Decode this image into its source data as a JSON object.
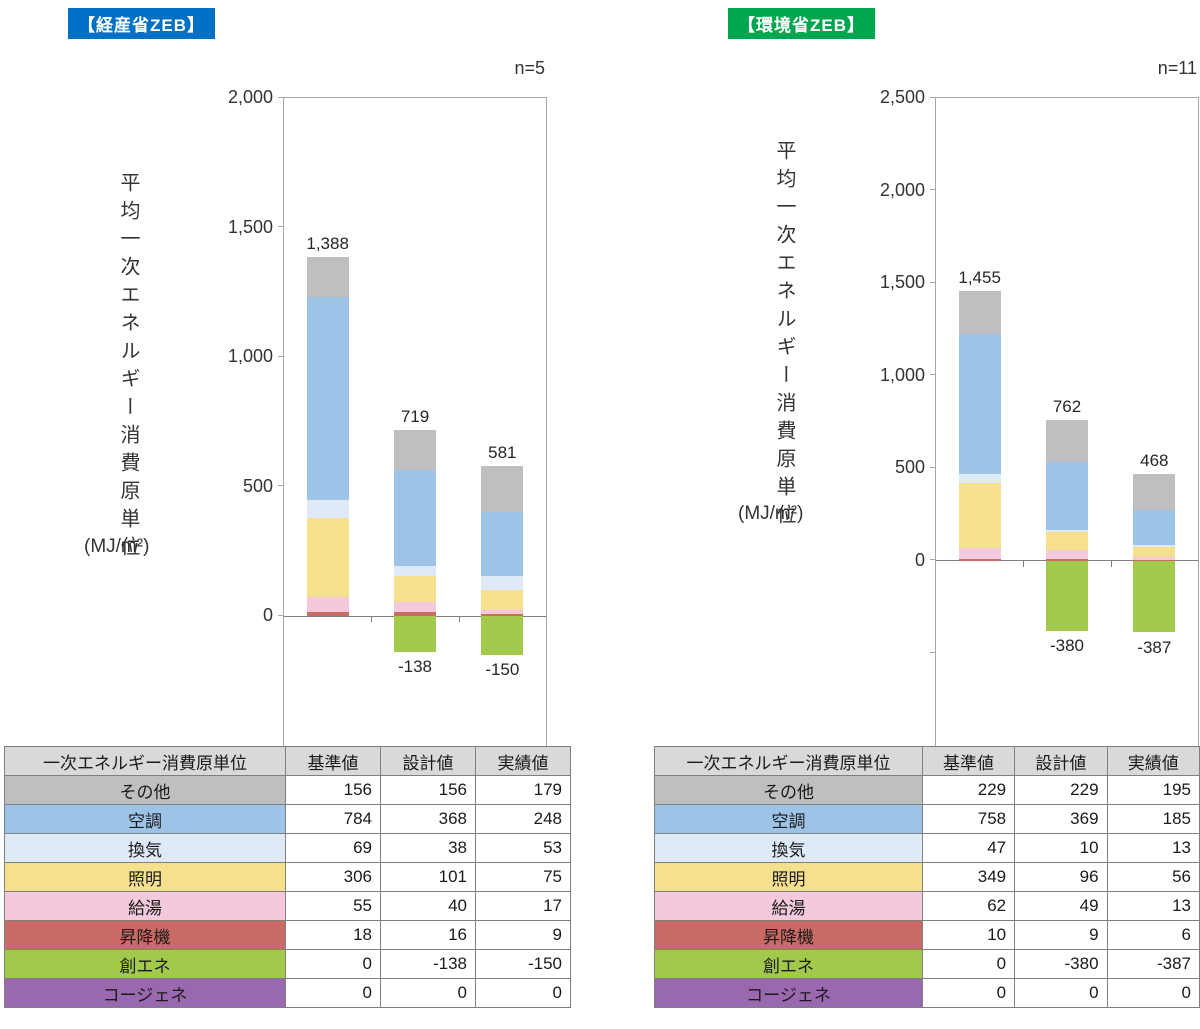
{
  "panels": [
    {
      "badge": "【経産省ZEB】",
      "badge_color": "#0070C6",
      "table": {
        "header": [
          "一次エネルギー消費原単位",
          "基準値",
          "設計値",
          "実績値"
        ],
        "rows": [
          {
            "label": "その他",
            "color": "#BFBFBF",
            "values": [
              "156",
              "156",
              "179"
            ]
          },
          {
            "label": "空調",
            "color": "#9DC3E6",
            "values": [
              "784",
              "368",
              "248"
            ]
          },
          {
            "label": "換気",
            "color": "#DEEBF7",
            "values": [
              "69",
              "38",
              "53"
            ]
          },
          {
            "label": "照明",
            "color": "#F5E08E",
            "values": [
              "306",
              "101",
              "75"
            ]
          },
          {
            "label": "給湯",
            "color": "#F4C9DB",
            "values": [
              "55",
              "40",
              "17"
            ]
          },
          {
            "label": "昇降機",
            "color": "#C96A64",
            "values": [
              "18",
              "16",
              "9"
            ]
          },
          {
            "label": "創エネ",
            "color": "#A2C84C",
            "values": [
              "0",
              "-138",
              "-150"
            ]
          },
          {
            "label": "コージェネ",
            "color": "#9A68AE",
            "values": [
              "0",
              "0",
              "0"
            ]
          }
        ]
      }
    },
    {
      "badge": "【環境省ZEB】",
      "badge_color": "#00A550",
      "table": {
        "header": [
          "一次エネルギー消費原単位",
          "基準値",
          "設計値",
          "実績値"
        ],
        "rows": [
          {
            "label": "その他",
            "color": "#BFBFBF",
            "values": [
              "229",
              "229",
              "195"
            ]
          },
          {
            "label": "空調",
            "color": "#9DC3E6",
            "values": [
              "758",
              "369",
              "185"
            ]
          },
          {
            "label": "換気",
            "color": "#DEEBF7",
            "values": [
              "47",
              "10",
              "13"
            ]
          },
          {
            "label": "照明",
            "color": "#F5E08E",
            "values": [
              "349",
              "96",
              "56"
            ]
          },
          {
            "label": "給湯",
            "color": "#F4C9DB",
            "values": [
              "62",
              "49",
              "13"
            ]
          },
          {
            "label": "昇降機",
            "color": "#C96A64",
            "values": [
              "10",
              "9",
              "6"
            ]
          },
          {
            "label": "創エネ",
            "color": "#A2C84C",
            "values": [
              "0",
              "-380",
              "-387"
            ]
          },
          {
            "label": "コージェネ",
            "color": "#9A68AE",
            "values": [
              "0",
              "0",
              "0"
            ]
          }
        ]
      }
    }
  ],
  "chart_data": [
    {
      "type": "bar",
      "stacked": true,
      "title": "【経産省ZEB】",
      "n_label": "n=5",
      "ylabel": "平均一次エネルギー消費原単位",
      "y_unit": "(MJ/m²)",
      "categories": [
        "基準値",
        "設計値",
        "実績値"
      ],
      "series_bottom_to_top": true,
      "series": [
        {
          "name": "昇降機",
          "color": "#C96A64",
          "values": [
            18,
            16,
            9
          ]
        },
        {
          "name": "給湯",
          "color": "#F4C9DB",
          "values": [
            55,
            40,
            17
          ]
        },
        {
          "name": "照明",
          "color": "#F5E08E",
          "values": [
            306,
            101,
            75
          ]
        },
        {
          "name": "換気",
          "color": "#DEEBF7",
          "values": [
            69,
            38,
            53
          ]
        },
        {
          "name": "空調",
          "color": "#9DC3E6",
          "values": [
            784,
            368,
            248
          ]
        },
        {
          "name": "その他",
          "color": "#BFBFBF",
          "values": [
            156,
            156,
            179
          ]
        },
        {
          "name": "創エネ",
          "color": "#A2C84C",
          "values": [
            0,
            -138,
            -150
          ]
        },
        {
          "name": "コージェネ",
          "color": "#9A68AE",
          "values": [
            0,
            0,
            0
          ]
        }
      ],
      "total_labels": [
        "1,388",
        "719",
        "581"
      ],
      "negative_labels": [
        "",
        "-138",
        "-150"
      ],
      "ylim": [
        -500,
        2000
      ],
      "ytick_step": 500,
      "ytick_labels": [
        {
          "value": 2000,
          "label": "2,000"
        },
        {
          "value": 1500,
          "label": "1,500"
        },
        {
          "value": 1000,
          "label": "1,000"
        },
        {
          "value": 500,
          "label": "500"
        },
        {
          "value": 0,
          "label": "0"
        }
      ],
      "yticks_unlabeled": [],
      "grid": false,
      "legend": "none"
    },
    {
      "type": "bar",
      "stacked": true,
      "title": "【環境省ZEB】",
      "n_label": "n=11",
      "ylabel": "平均一次エネルギー消費原単位",
      "y_unit": "(MJ/m²)",
      "categories": [
        "基準値",
        "設計値",
        "実績値"
      ],
      "series_bottom_to_top": true,
      "series": [
        {
          "name": "昇降機",
          "color": "#C96A64",
          "values": [
            10,
            9,
            6
          ]
        },
        {
          "name": "給湯",
          "color": "#F4C9DB",
          "values": [
            62,
            49,
            13
          ]
        },
        {
          "name": "照明",
          "color": "#F5E08E",
          "values": [
            349,
            96,
            56
          ]
        },
        {
          "name": "換気",
          "color": "#DEEBF7",
          "values": [
            47,
            10,
            13
          ]
        },
        {
          "name": "空調",
          "color": "#9DC3E6",
          "values": [
            758,
            369,
            185
          ]
        },
        {
          "name": "その他",
          "color": "#BFBFBF",
          "values": [
            229,
            229,
            195
          ]
        },
        {
          "name": "創エネ",
          "color": "#A2C84C",
          "values": [
            0,
            -380,
            -387
          ]
        },
        {
          "name": "コージェネ",
          "color": "#9A68AE",
          "values": [
            0,
            0,
            0
          ]
        }
      ],
      "total_labels": [
        "1,455",
        "762",
        "468"
      ],
      "negative_labels": [
        "",
        "-380",
        "-387"
      ],
      "ylim": [
        -1000,
        2500
      ],
      "ytick_step": 500,
      "ytick_labels": [
        {
          "value": 2500,
          "label": "2,500"
        },
        {
          "value": 2000,
          "label": "2,000"
        },
        {
          "value": 1500,
          "label": "1,500"
        },
        {
          "value": 1000,
          "label": "1,000"
        },
        {
          "value": 500,
          "label": "500"
        },
        {
          "value": 0,
          "label": "0"
        }
      ],
      "yticks_unlabeled": [
        -500
      ],
      "grid": false,
      "legend": "none"
    }
  ]
}
